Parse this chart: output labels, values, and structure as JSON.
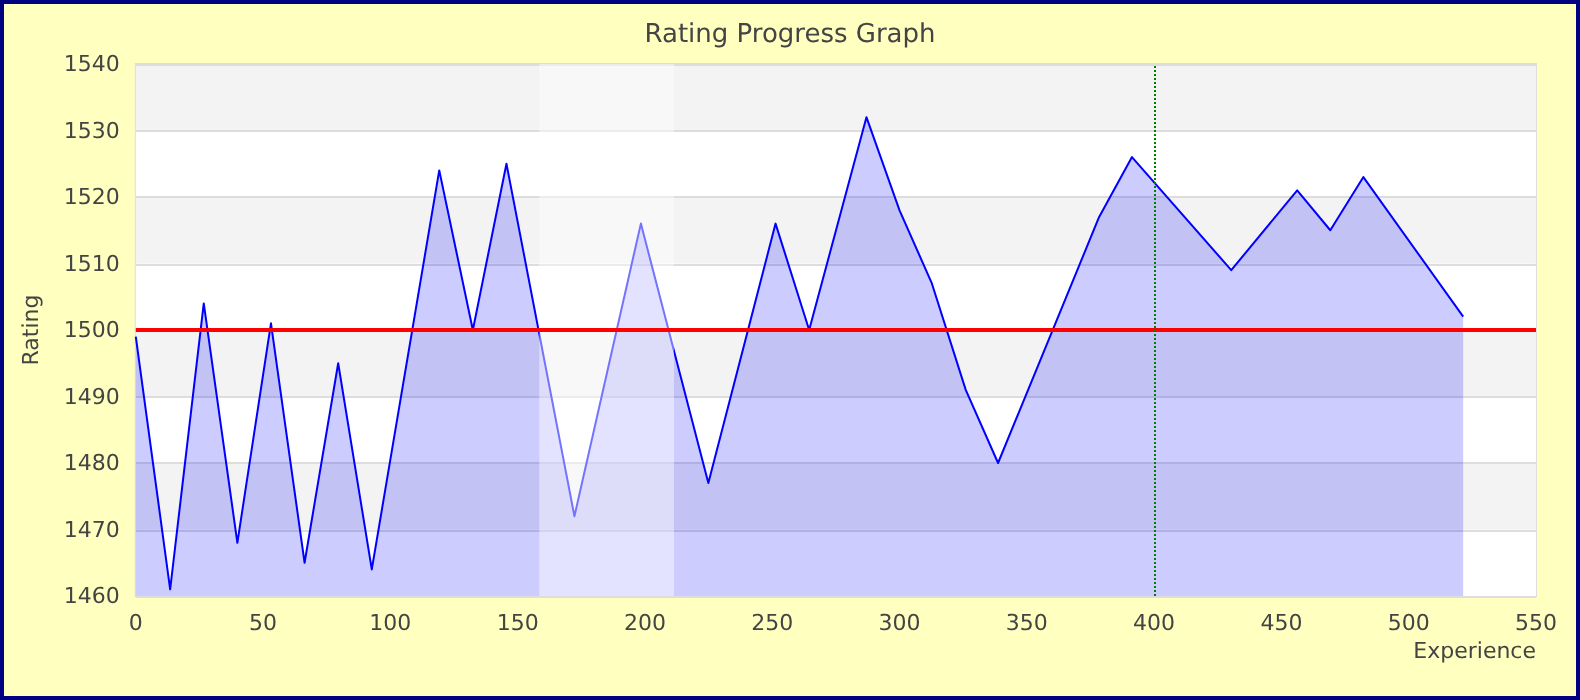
{
  "chart_data": {
    "type": "area",
    "title": "Rating Progress Graph",
    "xlabel": "Experience",
    "ylabel": "Rating",
    "x": [
      0,
      13.5,
      26.7,
      39.9,
      53.1,
      66.3,
      79.5,
      92.7,
      119.2,
      132.4,
      145.6,
      172.3,
      198.4,
      224.9,
      251.3,
      264.5,
      287,
      300,
      312.7,
      326,
      338.7,
      378.4,
      391.3,
      430.3,
      456.2,
      469.2,
      482.2,
      521.4
    ],
    "series": [
      {
        "color": "#0000ff",
        "values": [
          1499,
          1461,
          1504,
          1468,
          1501,
          1465,
          1495,
          1464,
          1524,
          1500,
          1525,
          1472,
          1516,
          1477,
          1516,
          1500,
          1532,
          1518,
          1507,
          1491,
          1480,
          1517,
          1526,
          1509,
          1521,
          1515,
          1523,
          1502
        ]
      }
    ],
    "xlim": [
      0,
      550
    ],
    "xticks": [
      0,
      50,
      100,
      150,
      200,
      250,
      300,
      350,
      400,
      450,
      500,
      550
    ],
    "ylim": [
      1460,
      1540
    ],
    "yticks": [
      1460,
      1470,
      1480,
      1490,
      1500,
      1510,
      1520,
      1530,
      1540
    ],
    "ref_lines": [
      {
        "axis": "y",
        "value": 1500,
        "color": "#ff0000",
        "line_style": "solid"
      },
      {
        "axis": "x",
        "value": 400,
        "color": "#008000",
        "line_style": "dotted"
      }
    ],
    "bands": [
      {
        "axis": "x",
        "from": 158.5,
        "to": 211.4,
        "color": "#ffffff"
      }
    ],
    "grid": "y",
    "marker": "none",
    "line_style": "solid"
  }
}
